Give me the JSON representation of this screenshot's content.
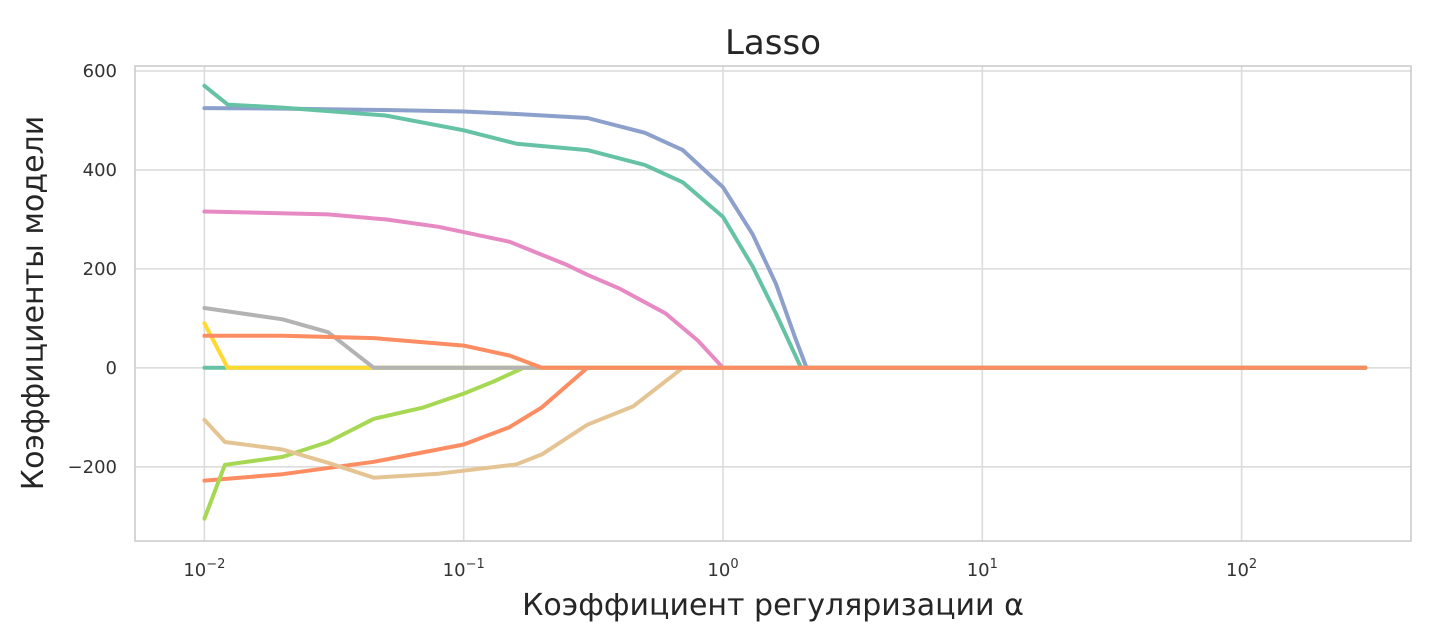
{
  "chart_data": {
    "type": "line",
    "title": "Lasso",
    "xlabel": "Коэффициент регуляризации α",
    "ylabel": "Коэффициенты модели",
    "xscale": "log",
    "xlim": [
      0.0054,
      450
    ],
    "ylim": [
      -350,
      610
    ],
    "grid": true,
    "legend": "none",
    "xticks": [
      {
        "value": 0.01,
        "base": "10",
        "exp": "−2"
      },
      {
        "value": 0.1,
        "base": "10",
        "exp": "−1"
      },
      {
        "value": 1,
        "base": "10",
        "exp": "0"
      },
      {
        "value": 10,
        "base": "10",
        "exp": "1"
      },
      {
        "value": 100,
        "base": "10",
        "exp": "2"
      }
    ],
    "yticks": [
      {
        "value": 600,
        "label": "600"
      },
      {
        "value": 400,
        "label": "400"
      },
      {
        "value": 200,
        "label": "200"
      },
      {
        "value": 0,
        "label": "0"
      },
      {
        "value": -200,
        "label": "−200"
      }
    ],
    "series": [
      {
        "color": "#66c2a5",
        "points": [
          [
            0.01,
            0
          ],
          [
            0.0123,
            0
          ],
          [
            300,
            0
          ]
        ]
      },
      {
        "color": "#fc8d62",
        "points": [
          [
            0.01,
            -228
          ],
          [
            0.02,
            -215
          ],
          [
            0.045,
            -190
          ],
          [
            0.1,
            -155
          ],
          [
            0.15,
            -120
          ],
          [
            0.2,
            -80
          ],
          [
            0.3,
            0
          ],
          [
            300,
            0
          ]
        ]
      },
      {
        "color": "#8da0cb",
        "points": [
          [
            0.01,
            525
          ],
          [
            0.02,
            524
          ],
          [
            0.05,
            521
          ],
          [
            0.1,
            518
          ],
          [
            0.16,
            513
          ],
          [
            0.3,
            505
          ],
          [
            0.5,
            475
          ],
          [
            0.7,
            440
          ],
          [
            1.0,
            365
          ],
          [
            1.3,
            270
          ],
          [
            1.6,
            170
          ],
          [
            1.9,
            60
          ],
          [
            2.1,
            0
          ],
          [
            300,
            0
          ]
        ]
      },
      {
        "color": "#e78ac3",
        "points": [
          [
            0.01,
            316
          ],
          [
            0.03,
            310
          ],
          [
            0.05,
            300
          ],
          [
            0.08,
            285
          ],
          [
            0.15,
            255
          ],
          [
            0.25,
            208
          ],
          [
            0.3,
            188
          ],
          [
            0.4,
            160
          ],
          [
            0.6,
            110
          ],
          [
            0.8,
            55
          ],
          [
            1.0,
            0
          ],
          [
            300,
            0
          ]
        ]
      },
      {
        "color": "#a6d854",
        "points": [
          [
            0.01,
            -305
          ],
          [
            0.012,
            -196
          ],
          [
            0.02,
            -180
          ],
          [
            0.03,
            -150
          ],
          [
            0.045,
            -103
          ],
          [
            0.07,
            -80
          ],
          [
            0.1,
            -52
          ],
          [
            0.13,
            -28
          ],
          [
            0.17,
            0
          ],
          [
            300,
            0
          ]
        ]
      },
      {
        "color": "#ffd92f",
        "points": [
          [
            0.01,
            90
          ],
          [
            0.0123,
            0
          ],
          [
            300,
            0
          ]
        ]
      },
      {
        "color": "#e5c494",
        "points": [
          [
            0.01,
            -105
          ],
          [
            0.012,
            -150
          ],
          [
            0.02,
            -165
          ],
          [
            0.03,
            -192
          ],
          [
            0.045,
            -222
          ],
          [
            0.08,
            -214
          ],
          [
            0.1,
            -208
          ],
          [
            0.16,
            -195
          ],
          [
            0.2,
            -175
          ],
          [
            0.3,
            -115
          ],
          [
            0.45,
            -78
          ],
          [
            0.7,
            0
          ],
          [
            300,
            0
          ]
        ]
      },
      {
        "color": "#b3b3b3",
        "points": [
          [
            0.01,
            121
          ],
          [
            0.02,
            98
          ],
          [
            0.03,
            72
          ],
          [
            0.045,
            0
          ],
          [
            300,
            0
          ]
        ]
      },
      {
        "color": "#66c2a5",
        "points": [
          [
            0.01,
            570
          ],
          [
            0.0123,
            532
          ],
          [
            0.02,
            526
          ],
          [
            0.05,
            510
          ],
          [
            0.1,
            480
          ],
          [
            0.16,
            453
          ],
          [
            0.3,
            440
          ],
          [
            0.5,
            410
          ],
          [
            0.7,
            375
          ],
          [
            1.0,
            305
          ],
          [
            1.3,
            205
          ],
          [
            1.6,
            110
          ],
          [
            2.0,
            0
          ],
          [
            300,
            0
          ]
        ]
      },
      {
        "color": "#fc8d62",
        "points": [
          [
            0.01,
            65
          ],
          [
            0.02,
            65
          ],
          [
            0.045,
            60
          ],
          [
            0.1,
            45
          ],
          [
            0.15,
            25
          ],
          [
            0.2,
            0
          ],
          [
            300,
            0
          ]
        ]
      }
    ]
  }
}
